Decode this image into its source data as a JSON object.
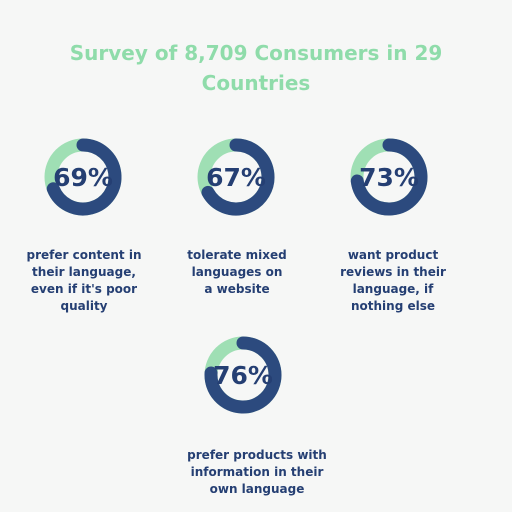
{
  "title": {
    "line1": "Survey of 8,709 Consumers in 29",
    "line2": "Countries"
  },
  "colors": {
    "background": "#f6f7f6",
    "title": "#8fdcaa",
    "ring_fill": "#2c4a7e",
    "ring_track": "#9fdfb4",
    "text": "#253f73"
  },
  "chart_data": {
    "type": "pie",
    "values": [
      69,
      67,
      73,
      76
    ],
    "labels": [
      "69%",
      "67%",
      "73%",
      "76%"
    ],
    "captions": [
      [
        "prefer content in",
        "their language,",
        "even if it's poor",
        "quality"
      ],
      [
        "tolerate mixed",
        "languages on",
        "a website"
      ],
      [
        "want product",
        "reviews in their",
        "language, if",
        "nothing else"
      ],
      [
        "prefer products with",
        "information in their",
        "own language"
      ]
    ],
    "title": "Survey of 8,709 Consumers in 29 Countries"
  }
}
